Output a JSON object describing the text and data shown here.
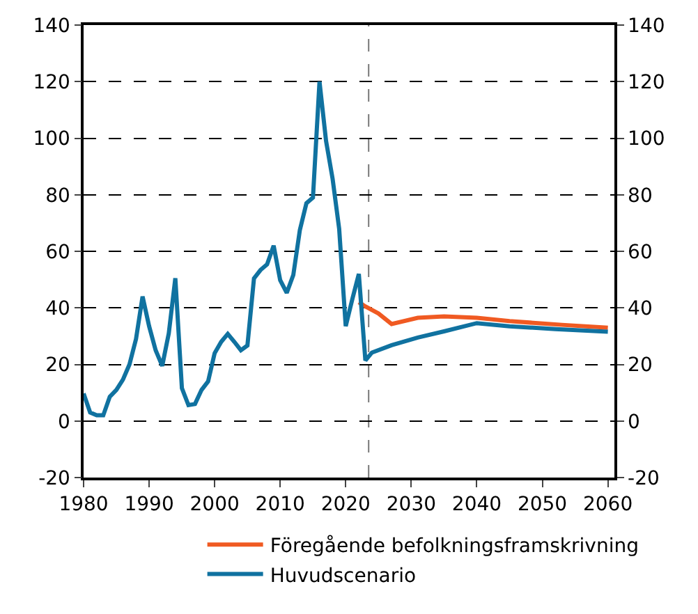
{
  "chart_data": {
    "type": "line",
    "series": [
      {
        "name": "Föregående befolkningsframskrivning",
        "color": "#f05a22",
        "x": [
          2022,
          2023,
          2025,
          2027,
          2031,
          2035,
          2040,
          2045,
          2053,
          2060
        ],
        "values": [
          42,
          40.5,
          38,
          34.3,
          36.5,
          37,
          36.5,
          35.3,
          34,
          33
        ]
      },
      {
        "name": "Huvudscenario",
        "color": "#1072a0",
        "x": [
          1980,
          1981,
          1982,
          1983,
          1984,
          1985,
          1986,
          1987,
          1988,
          1989,
          1990,
          1991,
          1992,
          1993,
          1994,
          1995,
          1996,
          1997,
          1998,
          1999,
          2000,
          2001,
          2002,
          2003,
          2004,
          2005,
          2006,
          2007,
          2008,
          2009,
          2010,
          2011,
          2012,
          2013,
          2014,
          2015,
          2016,
          2017,
          2018,
          2019,
          2020,
          2021,
          2022,
          2023,
          2024,
          2027,
          2031,
          2035,
          2040,
          2045,
          2052,
          2060
        ],
        "values": [
          9.7,
          3,
          2,
          2,
          8.6,
          11,
          14.6,
          20,
          29,
          44,
          33.5,
          25,
          19.5,
          31,
          50.5,
          11.6,
          5.6,
          6,
          11,
          14,
          24,
          28,
          30.8,
          28,
          25,
          26.7,
          50.4,
          53.4,
          55.4,
          62,
          49.8,
          45.3,
          51.6,
          67.5,
          77,
          79,
          120,
          99,
          85.6,
          68,
          33.5,
          43,
          52,
          21.4,
          24.2,
          26.8,
          29.5,
          31.7,
          34.6,
          33.5,
          32.5,
          31.6
        ]
      }
    ],
    "xlim": [
      1980,
      2061
    ],
    "xticks": [
      1980,
      1990,
      2000,
      2010,
      2020,
      2030,
      2040,
      2050,
      2060
    ],
    "ylim": [
      -20,
      140
    ],
    "yticks": [
      -20,
      0,
      20,
      40,
      60,
      80,
      100,
      120,
      140
    ],
    "y2lim": [
      -20,
      140
    ],
    "y2ticks": [
      -20,
      0,
      20,
      40,
      60,
      80,
      100,
      120,
      140
    ],
    "ref_lines": [
      {
        "axis": "x",
        "value": 2023.5,
        "color": "#777777",
        "line_style": "dashed"
      }
    ],
    "grid": "y",
    "legend": "bottom",
    "marker": "none",
    "line_style": "solid"
  }
}
